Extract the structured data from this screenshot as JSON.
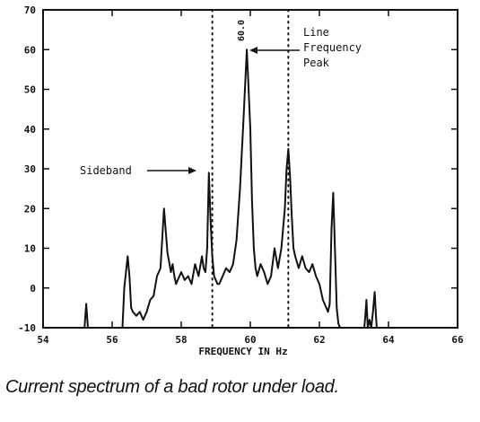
{
  "caption": "Current spectrum of a bad rotor under load.",
  "chart_data": {
    "type": "line",
    "title": "",
    "xlabel": "FREQUENCY IN Hz",
    "ylabel": "",
    "xlim": [
      54,
      66
    ],
    "ylim": [
      -10,
      70
    ],
    "x_ticks": [
      "54",
      "56",
      "58",
      "60",
      "62",
      "64",
      "66"
    ],
    "y_ticks": [
      "-10",
      "0",
      "10",
      "20",
      "30",
      "40",
      "50",
      "60",
      "70"
    ],
    "grid": false,
    "reference_lines_x": [
      58.9,
      61.1
    ],
    "annotations": [
      {
        "text_lines": [
          "Line",
          "Frequency",
          "Peak"
        ],
        "x": 60.0,
        "y": 60
      },
      {
        "text_lines": [
          "Sideband"
        ],
        "x": 58.9,
        "y": 30
      }
    ],
    "peak_label": "60.0",
    "series": [
      {
        "x": [
          55.2,
          55.25,
          55.3,
          55.35,
          55.4,
          56.3,
          56.35,
          56.45,
          56.5,
          56.55,
          56.6,
          56.7,
          56.8,
          56.9,
          57.0,
          57.1,
          57.2,
          57.3,
          57.4,
          57.5,
          57.6,
          57.7,
          57.75,
          57.8,
          57.85,
          57.9,
          58.0,
          58.1,
          58.2,
          58.3,
          58.4,
          58.5,
          58.6,
          58.65,
          58.7,
          58.75,
          58.8,
          58.85,
          58.9,
          58.95,
          59.0,
          59.05,
          59.1,
          59.2,
          59.3,
          59.4,
          59.5,
          59.6,
          59.7,
          59.8,
          59.9,
          59.95,
          60.0,
          60.05,
          60.1,
          60.15,
          60.2,
          60.3,
          60.4,
          60.5,
          60.6,
          60.7,
          60.8,
          60.9,
          61.0,
          61.05,
          61.1,
          61.15,
          61.2,
          61.25,
          61.3,
          61.4,
          61.5,
          61.6,
          61.7,
          61.8,
          61.9,
          62.0,
          62.1,
          62.2,
          62.25,
          62.3,
          62.35,
          62.4,
          62.45,
          62.5,
          62.55,
          62.6,
          62.65,
          62.7,
          63.3,
          63.33,
          63.36,
          63.4,
          63.45,
          63.5,
          63.55,
          63.6,
          63.63,
          63.66,
          63.7
        ],
        "y": [
          -10,
          -4,
          -10,
          -10,
          -10,
          -10,
          0,
          8,
          3,
          -5,
          -6,
          -7,
          -6,
          -8,
          -6,
          -3,
          -2,
          3,
          5,
          20,
          9,
          4,
          6,
          3,
          1,
          2,
          4,
          2,
          3,
          1,
          6,
          3,
          8,
          5,
          4,
          10,
          29,
          17,
          8,
          3,
          2,
          1,
          1,
          3,
          5,
          4,
          6,
          12,
          25,
          42,
          60,
          50,
          40,
          22,
          10,
          5,
          3,
          6,
          4,
          1,
          3,
          10,
          5,
          10,
          20,
          30,
          35,
          28,
          18,
          10,
          8,
          5,
          8,
          5,
          4,
          6,
          3,
          1,
          -3,
          -5,
          -6,
          -4,
          15,
          24,
          10,
          -5,
          -9,
          -10,
          -10,
          -10,
          -10,
          -7,
          -3,
          -10,
          -8,
          -10,
          -6,
          -1,
          -6,
          -10,
          -10
        ]
      }
    ]
  }
}
